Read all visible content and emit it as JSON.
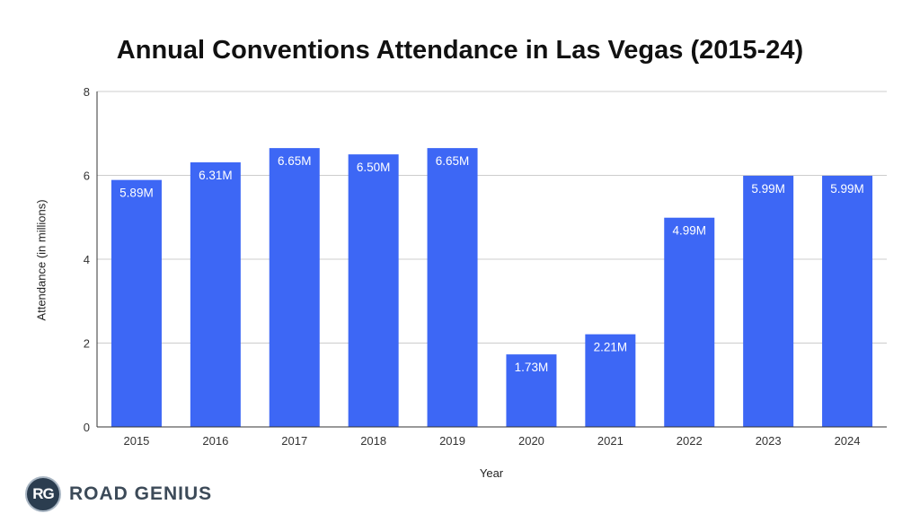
{
  "chart_data": {
    "type": "bar",
    "title": "Annual Conventions Attendance in Las Vegas (2015-24)",
    "xlabel": "Year",
    "ylabel": "Attendance (in millions)",
    "categories": [
      "2015",
      "2016",
      "2017",
      "2018",
      "2019",
      "2020",
      "2021",
      "2022",
      "2023",
      "2024"
    ],
    "values": [
      5.89,
      6.31,
      6.65,
      6.5,
      6.65,
      1.73,
      2.21,
      4.99,
      5.99,
      5.99
    ],
    "data_labels": [
      "5.89M",
      "6.31M",
      "6.65M",
      "6.50M",
      "6.65M",
      "1.73M",
      "2.21M",
      "4.99M",
      "5.99M",
      "5.99M"
    ],
    "ylim": [
      0,
      8
    ],
    "yticks": [
      0,
      2,
      4,
      6,
      8
    ],
    "grid": true,
    "bar_color": "#3d67f5"
  },
  "branding": {
    "badge": "RG",
    "name": "ROAD GENIUS"
  }
}
